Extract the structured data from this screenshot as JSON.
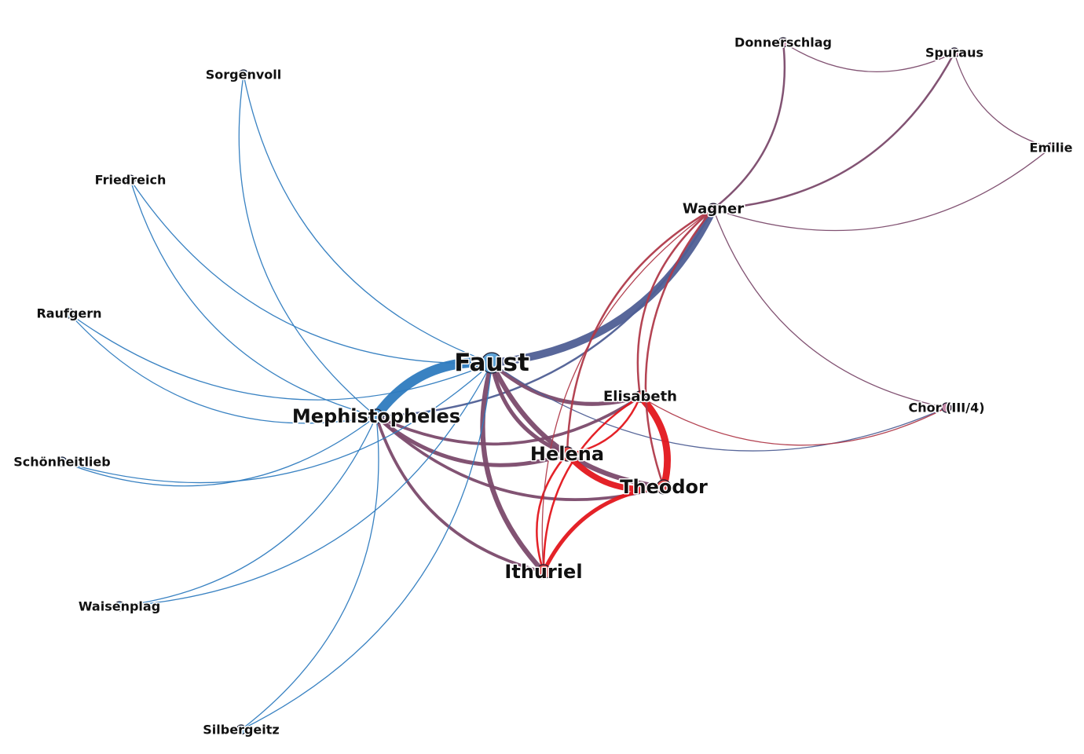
{
  "colors": {
    "group_a": "#2e7bbf",
    "group_b": "#7b4a6c",
    "group_c": "#e3161c",
    "mixed_ac": "#4f5f95",
    "mixed_bc": "#b03a4a",
    "node_outline": "#1a1a2e"
  },
  "nodes": [
    {
      "id": "faust",
      "label": "Faust",
      "color": "#5fa3d6",
      "size": "xl"
    },
    {
      "id": "mephistopheles",
      "label": "Mephistopheles",
      "color": "#5fa3d6",
      "size": "lg"
    },
    {
      "id": "wagner",
      "label": "Wagner",
      "color": "#a45a7c",
      "size": "md"
    },
    {
      "id": "helena",
      "label": "Helena",
      "color": "#e04a4a",
      "size": "lg"
    },
    {
      "id": "theodor",
      "label": "Theodor",
      "color": "#e04a4a",
      "size": "lg"
    },
    {
      "id": "ituriel",
      "label": "Ithuriel",
      "color": "#e04a4a",
      "size": "lg"
    },
    {
      "id": "elisabeth",
      "label": "Elisabeth",
      "color": "#e04a4a",
      "size": "md"
    },
    {
      "id": "donnerschlag",
      "label": "Donnerschlag",
      "color": "#c48aa8",
      "size": "sm"
    },
    {
      "id": "spuraus",
      "label": "Spuraus",
      "color": "#c48aa8",
      "size": "sm"
    },
    {
      "id": "emilie",
      "label": "Emilie",
      "color": "#c48aa8",
      "size": "sm"
    },
    {
      "id": "chor",
      "label": "Chor (III/4)",
      "color": "#c48aa8",
      "size": "sm"
    },
    {
      "id": "sorgenvoll",
      "label": "Sorgenvoll",
      "color": "#8cc2ea",
      "size": "sm"
    },
    {
      "id": "friedreich",
      "label": "Friedreich",
      "color": "#8cc2ea",
      "size": "sm"
    },
    {
      "id": "raufgern",
      "label": "Raufgern",
      "color": "#8cc2ea",
      "size": "sm"
    },
    {
      "id": "schoenheitlieb",
      "label": "Schönheitlieb",
      "color": "#8cc2ea",
      "size": "sm"
    },
    {
      "id": "waisenplag",
      "label": "Waisenplag",
      "color": "#8cc2ea",
      "size": "sm"
    },
    {
      "id": "silbergeitz",
      "label": "Silbergeitz",
      "color": "#8cc2ea",
      "size": "sm"
    }
  ],
  "edges": [
    {
      "source": "faust",
      "target": "mephistopheles",
      "weight": 10,
      "group": "group_a"
    },
    {
      "source": "faust",
      "target": "wagner",
      "weight": 8,
      "group": "mixed_ac"
    },
    {
      "source": "mephistopheles",
      "target": "wagner",
      "weight": 2,
      "group": "mixed_ac"
    },
    {
      "source": "faust",
      "target": "helena",
      "weight": 4,
      "group": "group_b"
    },
    {
      "source": "faust",
      "target": "theodor",
      "weight": 5,
      "group": "group_b"
    },
    {
      "source": "faust",
      "target": "elisabeth",
      "weight": 4,
      "group": "group_b"
    },
    {
      "source": "faust",
      "target": "ituriel",
      "weight": 5,
      "group": "group_b"
    },
    {
      "source": "faust",
      "target": "chor",
      "weight": 1,
      "group": "mixed_ac"
    },
    {
      "source": "mephistopheles",
      "target": "helena",
      "weight": 4,
      "group": "group_b"
    },
    {
      "source": "mephistopheles",
      "target": "theodor",
      "weight": 3,
      "group": "group_b"
    },
    {
      "source": "mephistopheles",
      "target": "elisabeth",
      "weight": 3,
      "group": "group_b"
    },
    {
      "source": "mephistopheles",
      "target": "ituriel",
      "weight": 3,
      "group": "group_b"
    },
    {
      "source": "helena",
      "target": "theodor",
      "weight": 6,
      "group": "group_c"
    },
    {
      "source": "helena",
      "target": "elisabeth",
      "weight": 2,
      "group": "group_c"
    },
    {
      "source": "helena",
      "target": "ituriel",
      "weight": 2,
      "group": "group_c"
    },
    {
      "source": "theodor",
      "target": "elisabeth",
      "weight": 7,
      "group": "group_c"
    },
    {
      "source": "theodor",
      "target": "ituriel",
      "weight": 4,
      "group": "group_c"
    },
    {
      "source": "elisabeth",
      "target": "ituriel",
      "weight": 2,
      "group": "group_c"
    },
    {
      "source": "wagner",
      "target": "elisabeth",
      "weight": 2,
      "group": "mixed_bc"
    },
    {
      "source": "wagner",
      "target": "helena",
      "weight": 2,
      "group": "mixed_bc"
    },
    {
      "source": "wagner",
      "target": "theodor",
      "weight": 2,
      "group": "mixed_bc"
    },
    {
      "source": "wagner",
      "target": "ituriel",
      "weight": 1,
      "group": "mixed_bc"
    },
    {
      "source": "wagner",
      "target": "donnerschlag",
      "weight": 2,
      "group": "group_b"
    },
    {
      "source": "wagner",
      "target": "spuraus",
      "weight": 2,
      "group": "group_b"
    },
    {
      "source": "wagner",
      "target": "emilie",
      "weight": 1,
      "group": "group_b"
    },
    {
      "source": "wagner",
      "target": "chor",
      "weight": 1,
      "group": "group_b"
    },
    {
      "source": "donnerschlag",
      "target": "spuraus",
      "weight": 1,
      "group": "group_b"
    },
    {
      "source": "spuraus",
      "target": "emilie",
      "weight": 1,
      "group": "group_b"
    },
    {
      "source": "elisabeth",
      "target": "chor",
      "weight": 1,
      "group": "mixed_bc"
    },
    {
      "source": "sorgenvoll",
      "target": "faust",
      "weight": 1,
      "group": "group_a"
    },
    {
      "source": "sorgenvoll",
      "target": "mephistopheles",
      "weight": 1,
      "group": "group_a"
    },
    {
      "source": "friedreich",
      "target": "faust",
      "weight": 1,
      "group": "group_a"
    },
    {
      "source": "friedreich",
      "target": "mephistopheles",
      "weight": 1,
      "group": "group_a"
    },
    {
      "source": "raufgern",
      "target": "faust",
      "weight": 1,
      "group": "group_a"
    },
    {
      "source": "raufgern",
      "target": "mephistopheles",
      "weight": 1,
      "group": "group_a"
    },
    {
      "source": "schoenheitlieb",
      "target": "faust",
      "weight": 1,
      "group": "group_a"
    },
    {
      "source": "schoenheitlieb",
      "target": "mephistopheles",
      "weight": 1,
      "group": "group_a"
    },
    {
      "source": "waisenplag",
      "target": "faust",
      "weight": 1,
      "group": "group_a"
    },
    {
      "source": "waisenplag",
      "target": "mephistopheles",
      "weight": 1,
      "group": "group_a"
    },
    {
      "source": "silbergeitz",
      "target": "faust",
      "weight": 1,
      "group": "group_a"
    },
    {
      "source": "silbergeitz",
      "target": "mephistopheles",
      "weight": 1,
      "group": "group_a"
    }
  ]
}
